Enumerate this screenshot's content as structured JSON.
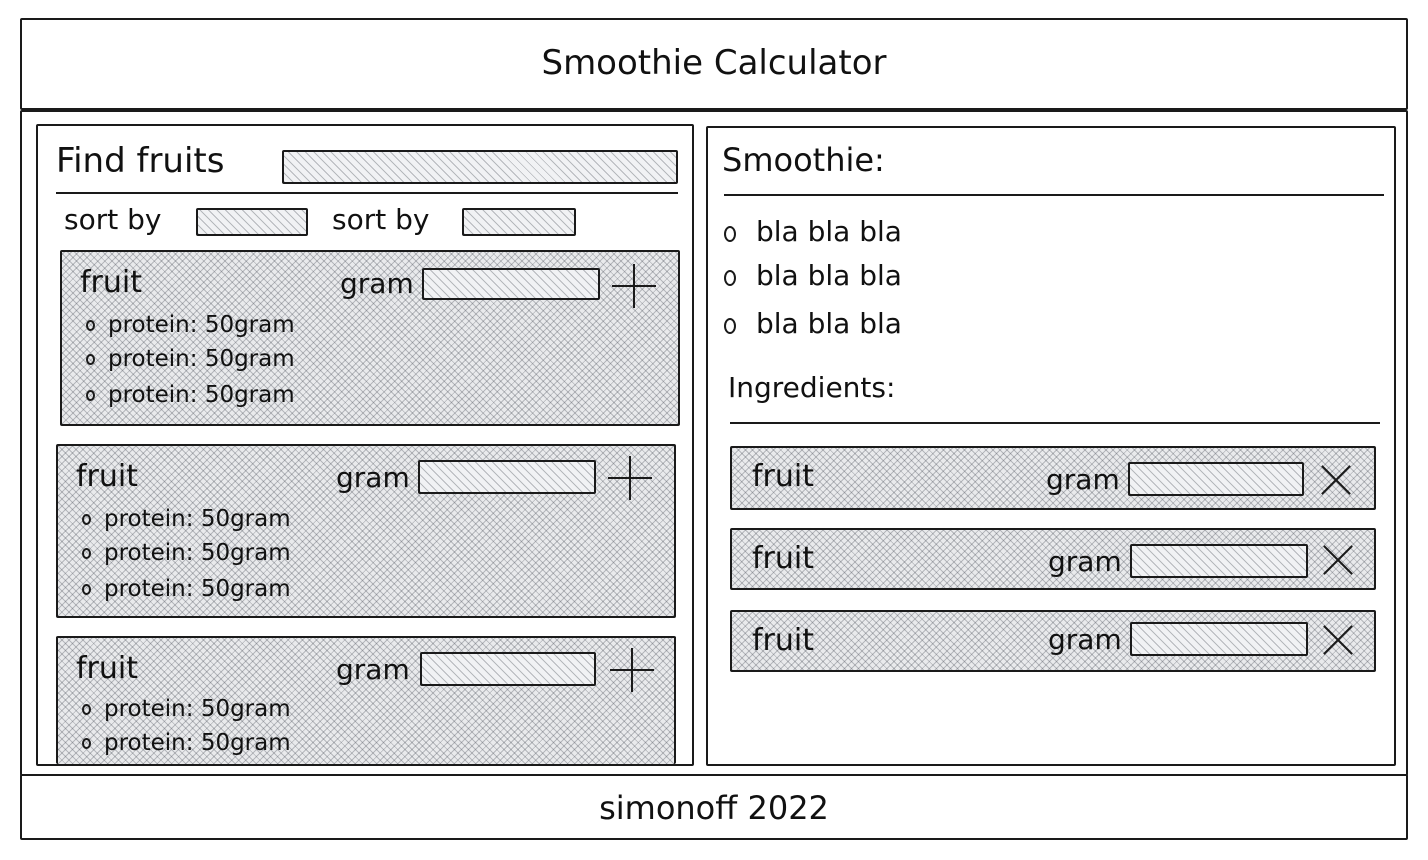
{
  "header": {
    "title": "Smoothie Calculator"
  },
  "search": {
    "label": "Find fruits",
    "value": ""
  },
  "sort": [
    {
      "label": "sort by",
      "value": ""
    },
    {
      "label": "sort by",
      "value": ""
    }
  ],
  "fruits": [
    {
      "name": "fruit",
      "gram_label": "gram",
      "gram_value": "",
      "nutrients": [
        "protein: 50gram",
        "protein: 50gram",
        "protein: 50gram"
      ]
    },
    {
      "name": "fruit",
      "gram_label": "gram",
      "gram_value": "",
      "nutrients": [
        "protein: 50gram",
        "protein: 50gram",
        "protein: 50gram"
      ]
    },
    {
      "name": "fruit",
      "gram_label": "gram",
      "gram_value": "",
      "nutrients": [
        "protein: 50gram",
        "protein: 50gram"
      ]
    }
  ],
  "smoothie": {
    "title": "Smoothie:",
    "items": [
      "bla bla bla",
      "bla bla bla",
      "bla bla bla"
    ]
  },
  "ingredients": {
    "title": "Ingredients:",
    "items": [
      {
        "name": "fruit",
        "gram_label": "gram",
        "gram_value": ""
      },
      {
        "name": "fruit",
        "gram_label": "gram",
        "gram_value": ""
      },
      {
        "name": "fruit",
        "gram_label": "gram",
        "gram_value": ""
      }
    ]
  },
  "footer": {
    "text": "simonoff 2022"
  }
}
